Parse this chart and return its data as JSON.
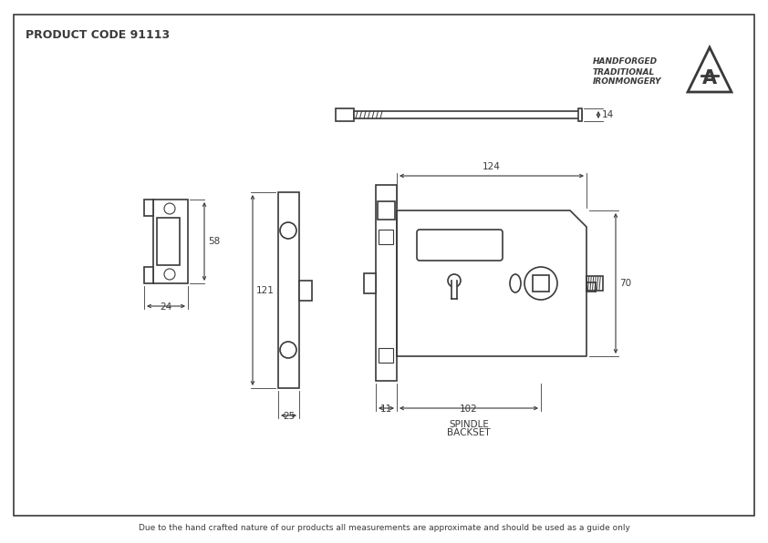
{
  "title": "PRODUCT CODE 91113",
  "footer": "Due to the hand crafted nature of our products all measurements are approximate and should be used as a guide only",
  "brand_line1": "HANDFORGED",
  "brand_line2": "TRADITIONAL",
  "brand_line3": "IRONMONGERY",
  "bg_color": "#ffffff",
  "line_color": "#3a3a3a",
  "dim_color": "#3a3a3a",
  "border_color": "#3a3a3a",
  "dim_124": "124",
  "dim_70": "70",
  "dim_121": "121",
  "dim_25": "25",
  "dim_11": "11",
  "dim_102": "102",
  "dim_58": "58",
  "dim_24": "24",
  "dim_14": "14",
  "spindle_label_1": "SPINDLE",
  "spindle_label_2": "BACKSET"
}
